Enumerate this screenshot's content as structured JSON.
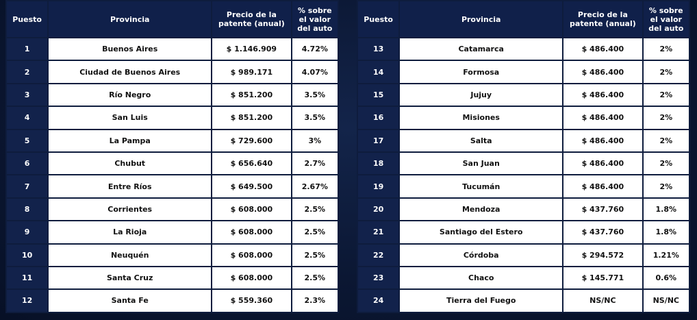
{
  "headers": {
    "rank": "Puesto",
    "province": "Provincia",
    "price": "Precio de la patente (anual)",
    "pct": "% sobre el valor del auto"
  },
  "left_table": [
    {
      "rank": "1",
      "province": "Buenos Aires",
      "price": "$ 1.146.909",
      "pct": "4.72%"
    },
    {
      "rank": "2",
      "province": "Ciudad de Buenos Aires",
      "price": "$ 989.171",
      "pct": "4.07%"
    },
    {
      "rank": "3",
      "province": "Río Negro",
      "price": "$ 851.200",
      "pct": "3.5%"
    },
    {
      "rank": "4",
      "province": "San Luis",
      "price": "$ 851.200",
      "pct": "3.5%"
    },
    {
      "rank": "5",
      "province": "La Pampa",
      "price": "$ 729.600",
      "pct": "3%"
    },
    {
      "rank": "6",
      "province": "Chubut",
      "price": "$ 656.640",
      "pct": "2.7%"
    },
    {
      "rank": "7",
      "province": "Entre Ríos",
      "price": "$ 649.500",
      "pct": "2.67%"
    },
    {
      "rank": "8",
      "province": "Corrientes",
      "price": "$ 608.000",
      "pct": "2.5%"
    },
    {
      "rank": "9",
      "province": "La Rioja",
      "price": "$ 608.000",
      "pct": "2.5%"
    },
    {
      "rank": "10",
      "province": "Neuquén",
      "price": "$ 608.000",
      "pct": "2.5%"
    },
    {
      "rank": "11",
      "province": "Santa Cruz",
      "price": "$ 608.000",
      "pct": "2.5%"
    },
    {
      "rank": "12",
      "province": "Santa Fe",
      "price": "$ 559.360",
      "pct": "2.3%"
    }
  ],
  "right_table": [
    {
      "rank": "13",
      "province": "Catamarca",
      "price": "$ 486.400",
      "pct": "2%"
    },
    {
      "rank": "14",
      "province": "Formosa",
      "price": "$ 486.400",
      "pct": "2%"
    },
    {
      "rank": "15",
      "province": "Jujuy",
      "price": "$ 486.400",
      "pct": "2%"
    },
    {
      "rank": "16",
      "province": "Misiones",
      "price": "$ 486.400",
      "pct": "2%"
    },
    {
      "rank": "17",
      "province": "Salta",
      "price": "$ 486.400",
      "pct": "2%"
    },
    {
      "rank": "18",
      "province": "San Juan",
      "price": "$ 486.400",
      "pct": "2%"
    },
    {
      "rank": "19",
      "province": "Tucumán",
      "price": "$ 486.400",
      "pct": "2%"
    },
    {
      "rank": "20",
      "province": "Mendoza",
      "price": "$ 437.760",
      "pct": "1.8%"
    },
    {
      "rank": "21",
      "province": "Santiago del Estero",
      "price": "$ 437.760",
      "pct": "1.8%"
    },
    {
      "rank": "22",
      "province": "Córdoba",
      "price": "$ 294.572",
      "pct": "1.21%"
    },
    {
      "rank": "23",
      "province": "Chaco",
      "price": "$ 145.771",
      "pct": "0.6%"
    },
    {
      "rank": "24",
      "province": "Tierra del Fuego",
      "price": "NS/NC",
      "pct": "NS/NC"
    }
  ],
  "colors": {
    "background": "#0a1631",
    "header": "#10204a",
    "rank_cell": "#12224b",
    "cell": "#ffffff"
  }
}
